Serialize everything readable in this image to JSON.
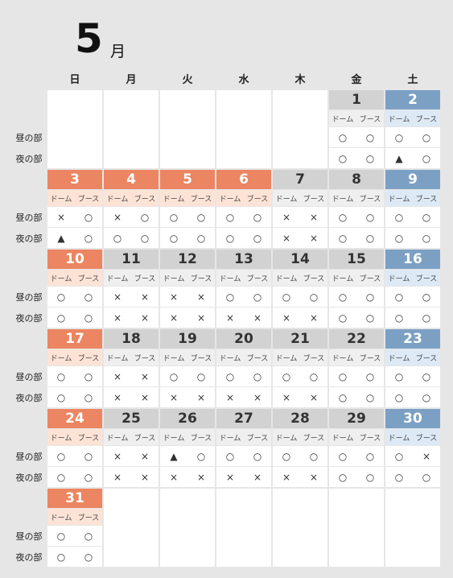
{
  "header": {
    "month": "5",
    "unit": "月"
  },
  "weekdays": [
    "日",
    "月",
    "火",
    "水",
    "木",
    "金",
    "土"
  ],
  "venues": [
    "ドーム",
    "ブース"
  ],
  "sessions": [
    "昼の部",
    "夜の部"
  ],
  "weeks": [
    [
      null,
      null,
      null,
      null,
      null,
      {
        "date": 1,
        "kind": "weekday",
        "day": [
          "○",
          "○"
        ],
        "night": [
          "○",
          "○"
        ]
      },
      {
        "date": 2,
        "kind": "saturday",
        "day": [
          "○",
          "○"
        ],
        "night": [
          "▲",
          "○"
        ]
      }
    ],
    [
      {
        "date": 3,
        "kind": "holiday",
        "day": [
          "×",
          "○"
        ],
        "night": [
          "▲",
          "○"
        ]
      },
      {
        "date": 4,
        "kind": "holiday",
        "day": [
          "×",
          "○"
        ],
        "night": [
          "○",
          "○"
        ]
      },
      {
        "date": 5,
        "kind": "holiday",
        "day": [
          "○",
          "○"
        ],
        "night": [
          "○",
          "○"
        ]
      },
      {
        "date": 6,
        "kind": "holiday",
        "day": [
          "○",
          "○"
        ],
        "night": [
          "○",
          "○"
        ]
      },
      {
        "date": 7,
        "kind": "weekday",
        "day": [
          "×",
          "×"
        ],
        "night": [
          "×",
          "×"
        ]
      },
      {
        "date": 8,
        "kind": "weekday",
        "day": [
          "○",
          "○"
        ],
        "night": [
          "○",
          "○"
        ]
      },
      {
        "date": 9,
        "kind": "saturday",
        "day": [
          "○",
          "○"
        ],
        "night": [
          "○",
          "○"
        ]
      }
    ],
    [
      {
        "date": 10,
        "kind": "holiday",
        "day": [
          "○",
          "○"
        ],
        "night": [
          "○",
          "○"
        ]
      },
      {
        "date": 11,
        "kind": "weekday",
        "day": [
          "×",
          "×"
        ],
        "night": [
          "×",
          "×"
        ]
      },
      {
        "date": 12,
        "kind": "weekday",
        "day": [
          "×",
          "×"
        ],
        "night": [
          "×",
          "×"
        ]
      },
      {
        "date": 13,
        "kind": "weekday",
        "day": [
          "○",
          "○"
        ],
        "night": [
          "×",
          "×"
        ]
      },
      {
        "date": 14,
        "kind": "weekday",
        "day": [
          "○",
          "○"
        ],
        "night": [
          "×",
          "×"
        ]
      },
      {
        "date": 15,
        "kind": "weekday",
        "day": [
          "○",
          "○"
        ],
        "night": [
          "○",
          "○"
        ]
      },
      {
        "date": 16,
        "kind": "saturday",
        "day": [
          "○",
          "○"
        ],
        "night": [
          "○",
          "○"
        ]
      }
    ],
    [
      {
        "date": 17,
        "kind": "holiday",
        "day": [
          "○",
          "○"
        ],
        "night": [
          "○",
          "○"
        ]
      },
      {
        "date": 18,
        "kind": "weekday",
        "day": [
          "×",
          "×"
        ],
        "night": [
          "×",
          "×"
        ]
      },
      {
        "date": 19,
        "kind": "weekday",
        "day": [
          "○",
          "○"
        ],
        "night": [
          "×",
          "×"
        ]
      },
      {
        "date": 20,
        "kind": "weekday",
        "day": [
          "○",
          "○"
        ],
        "night": [
          "×",
          "×"
        ]
      },
      {
        "date": 21,
        "kind": "weekday",
        "day": [
          "○",
          "○"
        ],
        "night": [
          "×",
          "×"
        ]
      },
      {
        "date": 22,
        "kind": "weekday",
        "day": [
          "○",
          "○"
        ],
        "night": [
          "○",
          "○"
        ]
      },
      {
        "date": 23,
        "kind": "saturday",
        "day": [
          "○",
          "○"
        ],
        "night": [
          "○",
          "○"
        ]
      }
    ],
    [
      {
        "date": 24,
        "kind": "holiday",
        "day": [
          "○",
          "○"
        ],
        "night": [
          "○",
          "○"
        ]
      },
      {
        "date": 25,
        "kind": "weekday",
        "day": [
          "×",
          "×"
        ],
        "night": [
          "×",
          "×"
        ]
      },
      {
        "date": 26,
        "kind": "weekday",
        "day": [
          "▲",
          "○"
        ],
        "night": [
          "×",
          "×"
        ]
      },
      {
        "date": 27,
        "kind": "weekday",
        "day": [
          "○",
          "○"
        ],
        "night": [
          "×",
          "×"
        ]
      },
      {
        "date": 28,
        "kind": "weekday",
        "day": [
          "○",
          "○"
        ],
        "night": [
          "×",
          "×"
        ]
      },
      {
        "date": 29,
        "kind": "weekday",
        "day": [
          "○",
          "○"
        ],
        "night": [
          "○",
          "○"
        ]
      },
      {
        "date": 30,
        "kind": "saturday",
        "day": [
          "○",
          "×"
        ],
        "night": [
          "○",
          "○"
        ]
      }
    ],
    [
      {
        "date": 31,
        "kind": "holiday",
        "day": [
          "○",
          "○"
        ],
        "night": [
          "○",
          "○"
        ]
      },
      null,
      null,
      null,
      null,
      null,
      null
    ]
  ]
}
